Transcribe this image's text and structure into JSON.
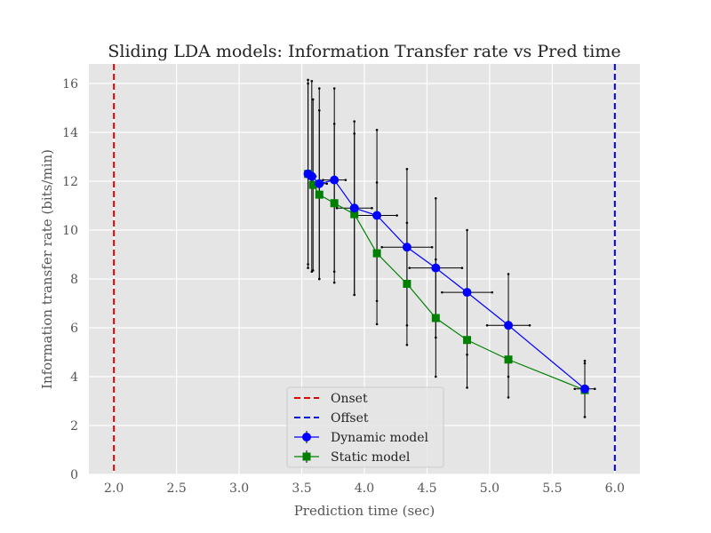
{
  "chart_data": {
    "type": "line",
    "title": "Sliding LDA models: Information Transfer rate vs Pred time",
    "xlabel": "Prediction time (sec)",
    "ylabel": "Information transfer rate (bits/min)",
    "xlim": [
      1.8,
      6.2
    ],
    "ylim": [
      0,
      16.8
    ],
    "xticks": [
      "2.0",
      "2.5",
      "3.0",
      "3.5",
      "4.0",
      "4.5",
      "5.0",
      "5.5",
      "6.0"
    ],
    "xtick_values": [
      2.0,
      2.5,
      3.0,
      3.5,
      4.0,
      4.5,
      5.0,
      5.5,
      6.0
    ],
    "yticks": [
      "0",
      "2",
      "4",
      "6",
      "8",
      "10",
      "12",
      "14",
      "16"
    ],
    "ytick_values": [
      0,
      2,
      4,
      6,
      8,
      10,
      12,
      14,
      16
    ],
    "grid": true,
    "legend_position": "lower-center",
    "vlines": [
      {
        "name": "Onset",
        "x": 2.0,
        "color": "#e00000"
      },
      {
        "name": "Offset",
        "x": 6.0,
        "color": "#0000dd"
      }
    ],
    "series": [
      {
        "name": "Dynamic model",
        "color": "#0000ff",
        "marker": "circle",
        "x": [
          3.55,
          3.58,
          3.64,
          3.76,
          3.92,
          4.1,
          4.34,
          4.57,
          4.82,
          5.15,
          5.76
        ],
        "y": [
          12.3,
          12.2,
          11.9,
          12.05,
          10.9,
          10.6,
          9.3,
          8.45,
          7.45,
          6.1,
          3.5
        ],
        "xerr": [
          0.02,
          0.03,
          0.06,
          0.09,
          0.14,
          0.16,
          0.2,
          0.21,
          0.2,
          0.17,
          0.08
        ],
        "yerr": [
          3.85,
          3.9,
          3.9,
          3.75,
          3.55,
          3.5,
          3.2,
          2.85,
          2.55,
          2.1,
          1.15
        ]
      },
      {
        "name": "Static model",
        "color": "#008000",
        "marker": "square",
        "x": [
          3.55,
          3.59,
          3.64,
          3.76,
          3.92,
          4.1,
          4.34,
          4.57,
          4.82,
          5.15,
          5.76
        ],
        "y": [
          12.3,
          11.85,
          11.45,
          11.1,
          10.65,
          9.05,
          7.8,
          6.4,
          5.5,
          4.7,
          3.45
        ],
        "xerr": [
          0.0,
          0.0,
          0.0,
          0.0,
          0.0,
          0.0,
          0.0,
          0.0,
          0.0,
          0.0,
          0.0
        ],
        "yerr": [
          3.7,
          3.5,
          3.45,
          3.25,
          3.3,
          2.9,
          2.5,
          2.4,
          1.95,
          1.55,
          1.1
        ]
      }
    ]
  }
}
